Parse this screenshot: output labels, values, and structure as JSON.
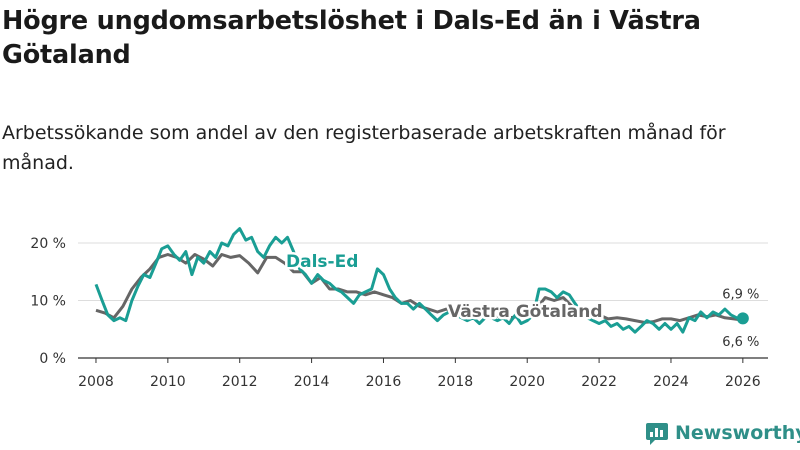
{
  "title": "Högre ungdomsarbetslöshet i Dals-Ed än i Västra Götaland",
  "subtitle": "Arbetssökande som andel av den registerbaserade arbetskraften månad för månad.",
  "brand": {
    "name": "Newsworthy",
    "icon": "newsworthy-logo-icon",
    "color": "#2f8f88"
  },
  "chart_data": {
    "type": "line",
    "x_axis": {
      "min": 2007.5,
      "max": 2026.7,
      "ticks": [
        2008,
        2010,
        2012,
        2014,
        2016,
        2018,
        2020,
        2022,
        2024,
        2026
      ],
      "tick_labels": [
        "2008",
        "2010",
        "2012",
        "2014",
        "2016",
        "2018",
        "2020",
        "2022",
        "2024",
        "2026"
      ]
    },
    "y_axis": {
      "min": 0,
      "max": 20,
      "ticks": [
        0,
        10,
        20
      ],
      "tick_labels": [
        "0 %",
        "10 %",
        "20 %"
      ],
      "unit": "%"
    },
    "series": [
      {
        "name": "Västra Götaland",
        "label": "Västra Götaland",
        "color": "#666666",
        "end_label": "6,6 %",
        "points": [
          [
            2008.0,
            8.3
          ],
          [
            2008.25,
            7.8
          ],
          [
            2008.5,
            7.0
          ],
          [
            2008.75,
            9.0
          ],
          [
            2009.0,
            12.0
          ],
          [
            2009.25,
            14.0
          ],
          [
            2009.5,
            15.5
          ],
          [
            2009.75,
            17.5
          ],
          [
            2010.0,
            18.0
          ],
          [
            2010.25,
            17.5
          ],
          [
            2010.5,
            16.5
          ],
          [
            2010.75,
            18.0
          ],
          [
            2011.0,
            17.2
          ],
          [
            2011.25,
            16.0
          ],
          [
            2011.5,
            18.0
          ],
          [
            2011.75,
            17.5
          ],
          [
            2012.0,
            17.8
          ],
          [
            2012.25,
            16.5
          ],
          [
            2012.5,
            14.8
          ],
          [
            2012.75,
            17.5
          ],
          [
            2013.0,
            17.5
          ],
          [
            2013.25,
            16.5
          ],
          [
            2013.5,
            15.0
          ],
          [
            2013.75,
            15.0
          ],
          [
            2014.0,
            13.0
          ],
          [
            2014.25,
            14.0
          ],
          [
            2014.5,
            12.0
          ],
          [
            2014.75,
            12.0
          ],
          [
            2015.0,
            11.5
          ],
          [
            2015.25,
            11.5
          ],
          [
            2015.5,
            11.0
          ],
          [
            2015.75,
            11.5
          ],
          [
            2016.0,
            11.0
          ],
          [
            2016.25,
            10.5
          ],
          [
            2016.5,
            9.5
          ],
          [
            2016.75,
            10.0
          ],
          [
            2017.0,
            9.0
          ],
          [
            2017.25,
            8.5
          ],
          [
            2017.5,
            8.0
          ],
          [
            2017.75,
            8.5
          ],
          [
            2018.0,
            8.0
          ],
          [
            2018.25,
            7.8
          ],
          [
            2018.5,
            7.2
          ],
          [
            2018.75,
            7.5
          ],
          [
            2019.0,
            7.5
          ],
          [
            2019.25,
            7.2
          ],
          [
            2019.5,
            7.0
          ],
          [
            2019.75,
            7.2
          ],
          [
            2020.0,
            7.0
          ],
          [
            2020.25,
            8.5
          ],
          [
            2020.5,
            10.5
          ],
          [
            2020.75,
            10.0
          ],
          [
            2021.0,
            10.5
          ],
          [
            2021.25,
            9.0
          ],
          [
            2021.5,
            8.5
          ],
          [
            2021.75,
            8.0
          ],
          [
            2022.0,
            7.5
          ],
          [
            2022.25,
            6.8
          ],
          [
            2022.5,
            7.0
          ],
          [
            2022.75,
            6.8
          ],
          [
            2023.0,
            6.5
          ],
          [
            2023.25,
            6.2
          ],
          [
            2023.5,
            6.3
          ],
          [
            2023.75,
            6.8
          ],
          [
            2024.0,
            6.8
          ],
          [
            2024.25,
            6.5
          ],
          [
            2024.5,
            7.0
          ],
          [
            2024.75,
            7.5
          ],
          [
            2025.0,
            7.2
          ],
          [
            2025.25,
            7.5
          ],
          [
            2025.5,
            7.0
          ],
          [
            2025.75,
            6.8
          ],
          [
            2026.0,
            6.6
          ]
        ]
      },
      {
        "name": "Dals-Ed",
        "label": "Dals-Ed",
        "color": "#1a9e94",
        "end_label": "6,9 %",
        "points": [
          [
            2008.0,
            12.8
          ],
          [
            2008.17,
            10.0
          ],
          [
            2008.33,
            7.5
          ],
          [
            2008.5,
            6.5
          ],
          [
            2008.67,
            7.0
          ],
          [
            2008.83,
            6.5
          ],
          [
            2009.0,
            10.0
          ],
          [
            2009.17,
            12.5
          ],
          [
            2009.33,
            14.5
          ],
          [
            2009.5,
            14.0
          ],
          [
            2009.67,
            16.5
          ],
          [
            2009.83,
            19.0
          ],
          [
            2010.0,
            19.5
          ],
          [
            2010.17,
            18.0
          ],
          [
            2010.33,
            17.0
          ],
          [
            2010.5,
            18.5
          ],
          [
            2010.67,
            14.5
          ],
          [
            2010.83,
            17.5
          ],
          [
            2011.0,
            16.5
          ],
          [
            2011.17,
            18.5
          ],
          [
            2011.33,
            17.5
          ],
          [
            2011.5,
            20.0
          ],
          [
            2011.67,
            19.5
          ],
          [
            2011.83,
            21.5
          ],
          [
            2012.0,
            22.5
          ],
          [
            2012.17,
            20.5
          ],
          [
            2012.33,
            21.0
          ],
          [
            2012.5,
            18.5
          ],
          [
            2012.67,
            17.5
          ],
          [
            2012.83,
            19.5
          ],
          [
            2013.0,
            21.0
          ],
          [
            2013.17,
            20.0
          ],
          [
            2013.33,
            21.0
          ],
          [
            2013.5,
            18.5
          ],
          [
            2013.67,
            15.5
          ],
          [
            2013.83,
            14.5
          ],
          [
            2014.0,
            13.0
          ],
          [
            2014.17,
            14.5
          ],
          [
            2014.33,
            13.5
          ],
          [
            2014.5,
            13.0
          ],
          [
            2014.67,
            12.0
          ],
          [
            2014.83,
            11.5
          ],
          [
            2015.0,
            10.5
          ],
          [
            2015.17,
            9.5
          ],
          [
            2015.33,
            11.0
          ],
          [
            2015.5,
            11.5
          ],
          [
            2015.67,
            12.0
          ],
          [
            2015.83,
            15.5
          ],
          [
            2016.0,
            14.5
          ],
          [
            2016.17,
            12.0
          ],
          [
            2016.33,
            10.5
          ],
          [
            2016.5,
            9.5
          ],
          [
            2016.67,
            9.5
          ],
          [
            2016.83,
            8.5
          ],
          [
            2017.0,
            9.5
          ],
          [
            2017.17,
            8.5
          ],
          [
            2017.33,
            7.5
          ],
          [
            2017.5,
            6.5
          ],
          [
            2017.67,
            7.5
          ],
          [
            2017.83,
            8.0
          ],
          [
            2018.0,
            7.5
          ],
          [
            2018.17,
            7.0
          ],
          [
            2018.33,
            6.5
          ],
          [
            2018.5,
            7.0
          ],
          [
            2018.67,
            6.0
          ],
          [
            2018.83,
            7.0
          ],
          [
            2019.0,
            7.0
          ],
          [
            2019.17,
            6.5
          ],
          [
            2019.33,
            7.0
          ],
          [
            2019.5,
            6.0
          ],
          [
            2019.67,
            7.5
          ],
          [
            2019.83,
            6.0
          ],
          [
            2020.0,
            6.5
          ],
          [
            2020.17,
            7.5
          ],
          [
            2020.33,
            12.0
          ],
          [
            2020.5,
            12.0
          ],
          [
            2020.67,
            11.5
          ],
          [
            2020.83,
            10.5
          ],
          [
            2021.0,
            11.5
          ],
          [
            2021.17,
            11.0
          ],
          [
            2021.33,
            9.5
          ],
          [
            2021.5,
            8.0
          ],
          [
            2021.67,
            7.0
          ],
          [
            2021.83,
            6.5
          ],
          [
            2022.0,
            6.0
          ],
          [
            2022.17,
            6.5
          ],
          [
            2022.33,
            5.5
          ],
          [
            2022.5,
            6.0
          ],
          [
            2022.67,
            5.0
          ],
          [
            2022.83,
            5.5
          ],
          [
            2023.0,
            4.5
          ],
          [
            2023.17,
            5.5
          ],
          [
            2023.33,
            6.5
          ],
          [
            2023.5,
            6.0
          ],
          [
            2023.67,
            5.0
          ],
          [
            2023.83,
            6.0
          ],
          [
            2024.0,
            5.0
          ],
          [
            2024.17,
            6.0
          ],
          [
            2024.33,
            4.5
          ],
          [
            2024.5,
            7.0
          ],
          [
            2024.67,
            6.5
          ],
          [
            2024.83,
            8.0
          ],
          [
            2025.0,
            7.0
          ],
          [
            2025.17,
            8.0
          ],
          [
            2025.33,
            7.5
          ],
          [
            2025.5,
            8.5
          ],
          [
            2025.67,
            7.5
          ],
          [
            2025.83,
            7.0
          ],
          [
            2026.0,
            6.9
          ]
        ]
      }
    ],
    "legend": "inline labels on lines"
  }
}
